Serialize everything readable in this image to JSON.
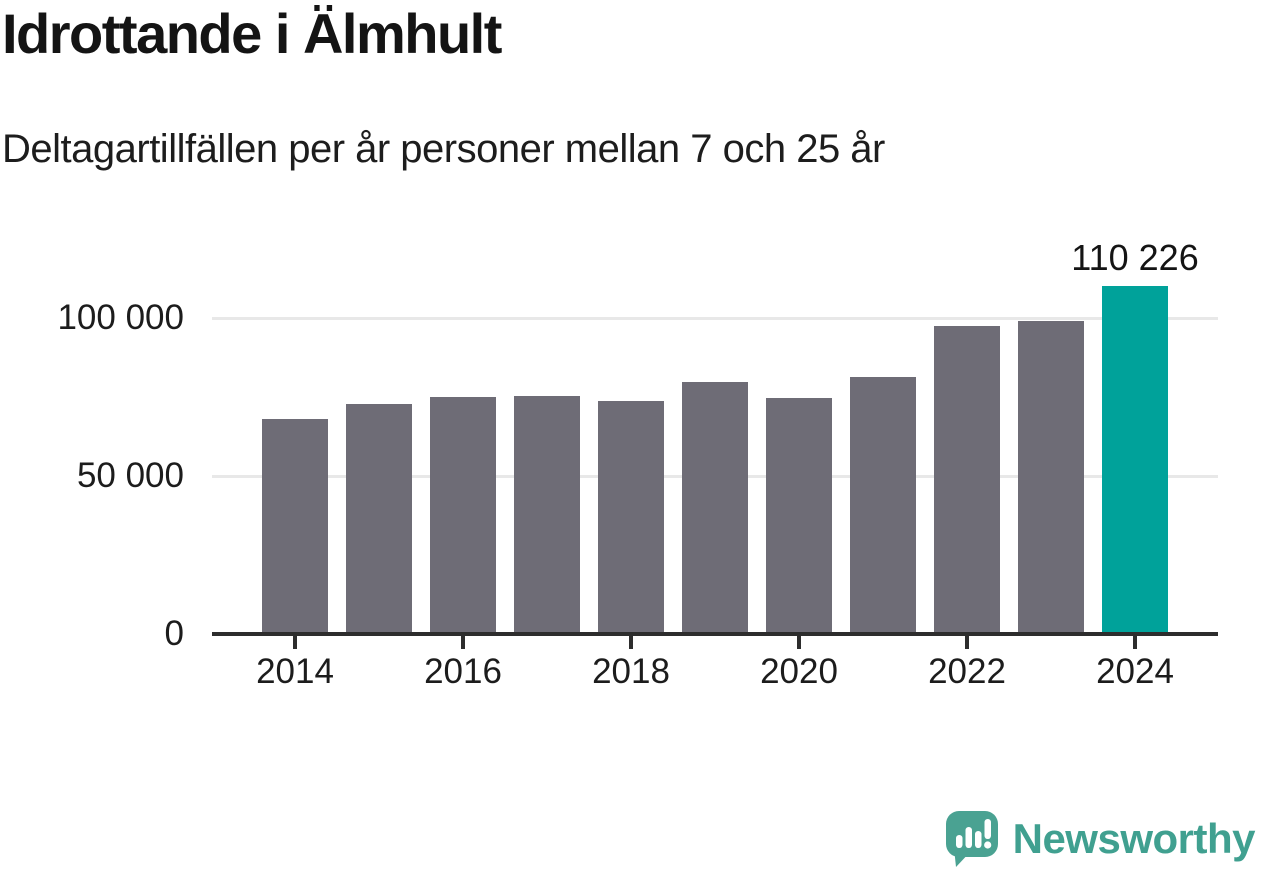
{
  "title": "Idrottande i Älmhult",
  "subtitle": "Deltagartillfällen per år personer mellan 7 och 25 år",
  "chart_data": {
    "type": "bar",
    "categories": [
      2014,
      2015,
      2016,
      2017,
      2018,
      2019,
      2020,
      2021,
      2022,
      2023,
      2024
    ],
    "values": [
      68000,
      72800,
      75000,
      75300,
      73700,
      79700,
      74700,
      81300,
      97500,
      99000,
      110226
    ],
    "title": "Idrottande i Älmhult",
    "subtitle": "Deltagartillfällen per år personer mellan 7 och 25 år",
    "xlabel": "",
    "ylabel": "",
    "ylim": [
      0,
      115000
    ],
    "grid": "horizontal",
    "legend": "none",
    "highlight_year": 2024,
    "value_label": "110 226",
    "x_axis": {
      "ticks": [
        2014,
        2016,
        2018,
        2020,
        2022,
        2024
      ]
    },
    "y_axis": {
      "ticks": [
        {
          "value": 0,
          "label": "0"
        },
        {
          "value": 50000,
          "label": "50 000"
        },
        {
          "value": 100000,
          "label": "100 000"
        }
      ]
    },
    "colors": {
      "bar": "#6e6c76",
      "highlight": "#00a29a",
      "gridline": "#e8e8e8",
      "axis": "#2d2d2d",
      "text": "#1c1c1c"
    }
  },
  "branding": {
    "wordmark": "Newsworthy",
    "color": "#40a090",
    "icon": "newsworthy-logo-icon"
  }
}
